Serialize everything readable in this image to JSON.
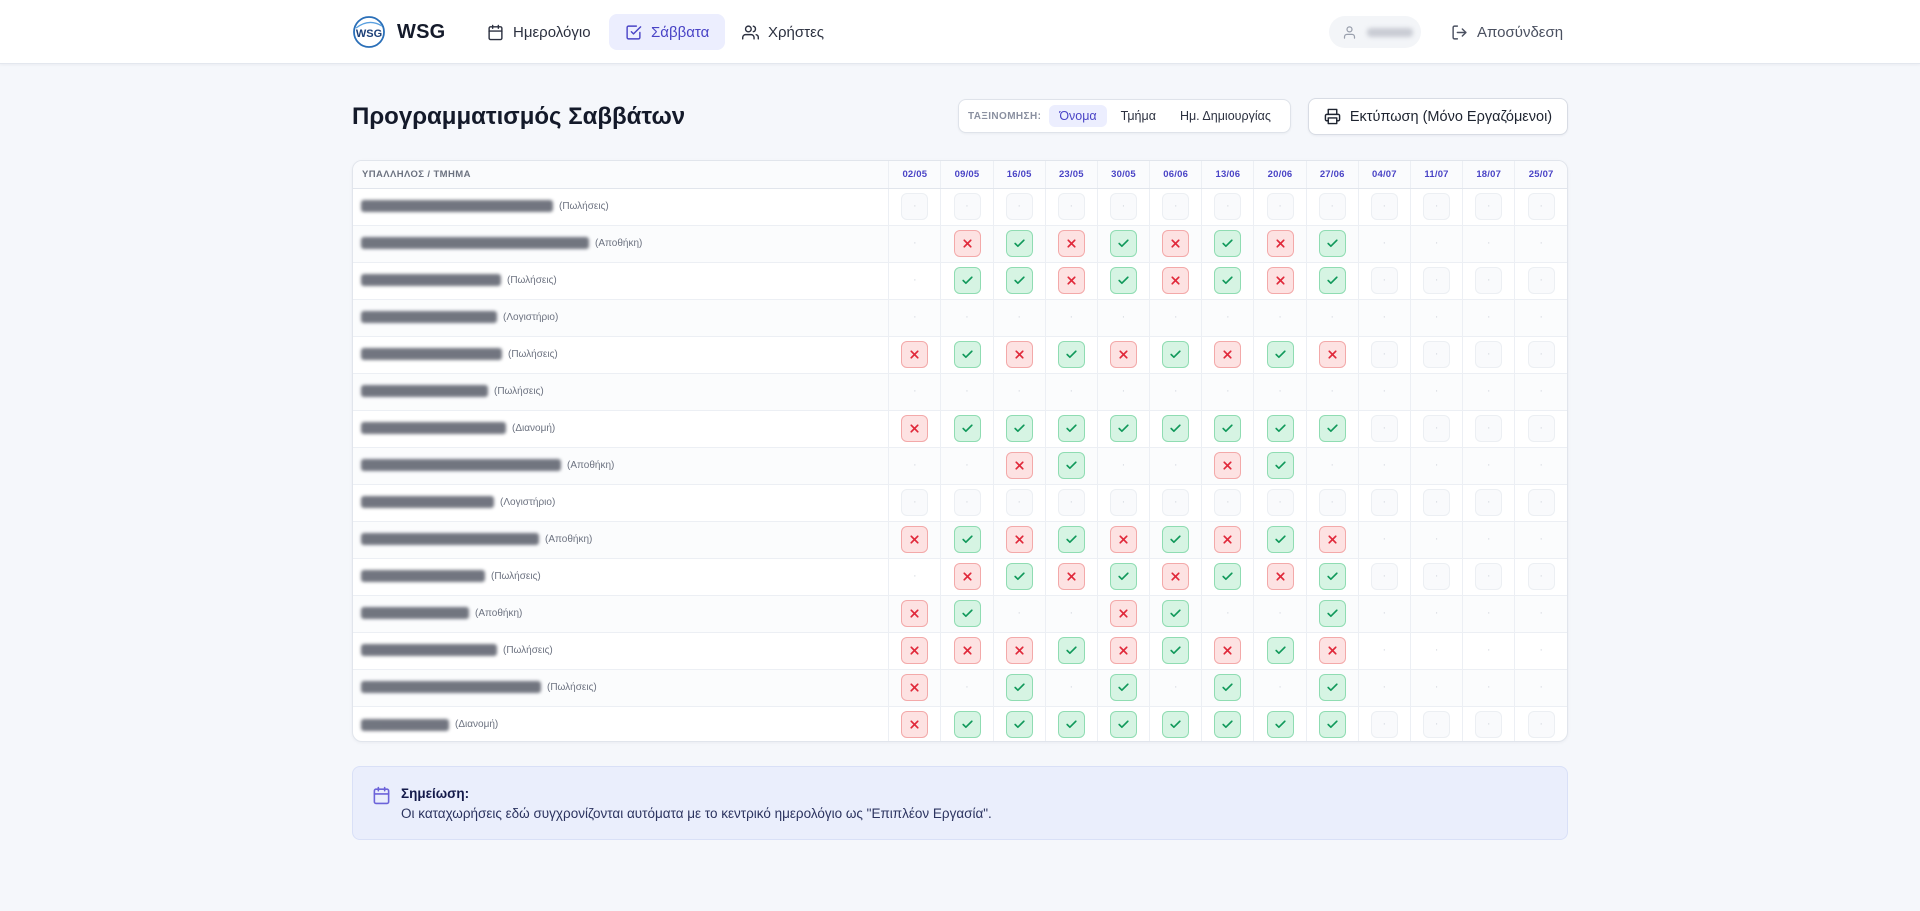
{
  "brand": {
    "name": "WSG",
    "logo_text": "WSG"
  },
  "nav": {
    "calendar_label": "Ημερολόγιο",
    "saturdays_label": "Σάββατα",
    "users_label": "Χρήστες"
  },
  "user": {
    "logout_label": "Αποσύνδεση"
  },
  "page": {
    "title": "Προγραμματισμός Σαββάτων"
  },
  "sort": {
    "label": "ΤΑΞΙΝΟΜΗΣΗ:",
    "options": [
      "Όνομα",
      "Τμήμα",
      "Ημ. Δημιουργίας"
    ],
    "active": "Όνομα"
  },
  "print_label": "Εκτύπωση (Μόνο Εργαζόμενοι)",
  "table": {
    "name_header": "ΥΠΑΛΛΗΛΟΣ / ΤΜΗΜΑ",
    "dates": [
      "02/05",
      "09/05",
      "16/05",
      "23/05",
      "30/05",
      "06/06",
      "13/06",
      "20/06",
      "27/06",
      "04/07",
      "11/07",
      "18/07",
      "25/07"
    ],
    "rows": [
      {
        "dept": "(Πωλήσεις)",
        "cells": [
          "f",
          "f",
          "f",
          "f",
          "f",
          "f",
          "f",
          "f",
          "f",
          "f",
          "f",
          "f",
          "f"
        ]
      },
      {
        "dept": "(Αποθήκη)",
        "cells": [
          "e",
          "n",
          "y",
          "n",
          "y",
          "n",
          "y",
          "n",
          "y",
          "e",
          "e",
          "e",
          "e"
        ]
      },
      {
        "dept": "(Πωλήσεις)",
        "cells": [
          "e",
          "y",
          "y",
          "n",
          "y",
          "n",
          "y",
          "n",
          "y",
          "f",
          "f",
          "f",
          "f"
        ]
      },
      {
        "dept": "(Λογιστήριο)",
        "cells": [
          "e",
          "e",
          "e",
          "e",
          "e",
          "e",
          "e",
          "e",
          "e",
          "e",
          "e",
          "e",
          "e"
        ]
      },
      {
        "dept": "(Πωλήσεις)",
        "cells": [
          "n",
          "y",
          "n",
          "y",
          "n",
          "y",
          "n",
          "y",
          "n",
          "f",
          "f",
          "f",
          "f"
        ]
      },
      {
        "dept": "(Πωλήσεις)",
        "cells": [
          "e",
          "e",
          "e",
          "e",
          "e",
          "e",
          "e",
          "e",
          "e",
          "e",
          "e",
          "e",
          "e"
        ]
      },
      {
        "dept": "(Διανομή)",
        "cells": [
          "n",
          "y",
          "y",
          "y",
          "y",
          "y",
          "y",
          "y",
          "y",
          "f",
          "f",
          "f",
          "f"
        ]
      },
      {
        "dept": "(Αποθήκη)",
        "cells": [
          "e",
          "e",
          "n",
          "y",
          "e",
          "e",
          "n",
          "y",
          "e",
          "e",
          "e",
          "e",
          "e"
        ]
      },
      {
        "dept": "(Λογιστήριο)",
        "cells": [
          "f",
          "f",
          "f",
          "f",
          "f",
          "f",
          "f",
          "f",
          "f",
          "f",
          "f",
          "f",
          "f"
        ]
      },
      {
        "dept": "(Αποθήκη)",
        "cells": [
          "n",
          "y",
          "n",
          "y",
          "n",
          "y",
          "n",
          "y",
          "n",
          "e",
          "e",
          "e",
          "e"
        ]
      },
      {
        "dept": "(Πωλήσεις)",
        "cells": [
          "e",
          "n",
          "y",
          "n",
          "y",
          "n",
          "y",
          "n",
          "y",
          "f",
          "f",
          "f",
          "f"
        ]
      },
      {
        "dept": "(Αποθήκη)",
        "cells": [
          "n",
          "y",
          "e",
          "e",
          "n",
          "y",
          "e",
          "e",
          "y",
          "e",
          "e",
          "e",
          "e"
        ]
      },
      {
        "dept": "(Πωλήσεις)",
        "cells": [
          "n",
          "n",
          "n",
          "y",
          "n",
          "y",
          "n",
          "y",
          "n",
          "e",
          "e",
          "e",
          "e"
        ]
      },
      {
        "dept": "(Πωλήσεις)",
        "cells": [
          "n",
          "e",
          "y",
          "e",
          "y",
          "e",
          "y",
          "e",
          "y",
          "e",
          "e",
          "e",
          "e"
        ]
      },
      {
        "dept": "(Διανομή)",
        "cells": [
          "n",
          "y",
          "y",
          "y",
          "y",
          "y",
          "y",
          "y",
          "y",
          "f",
          "f",
          "f",
          "f"
        ]
      }
    ]
  },
  "note": {
    "title": "Σημείωση:",
    "text": "Οι καταχωρήσεις εδώ συγχρονίζονται αυτόματα με το κεντρικό ημερολόγιο ως \"Επιπλέον Εργασία\"."
  },
  "colors": {
    "accent": "#4a44c6",
    "yes_bg": "#d6f4e3",
    "yes_fg": "#11995b",
    "no_bg": "#fde2e2",
    "no_fg": "#e0293a",
    "note_bg": "#eaeefc"
  },
  "icons": {
    "calendar": "calendar-icon",
    "saturdays": "checkbox-icon",
    "users": "users-icon",
    "user": "user-icon",
    "logout": "logout-icon",
    "print": "printer-icon",
    "note": "calendar-icon",
    "yes": "check-icon",
    "no": "x-icon"
  }
}
